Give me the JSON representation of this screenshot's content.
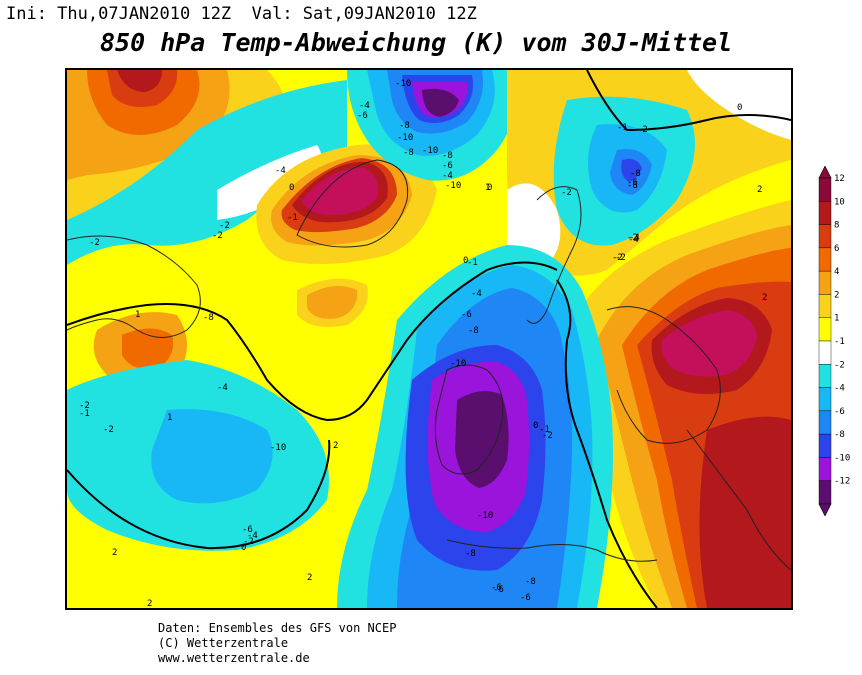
{
  "header": {
    "run_info": "Ini: Thu,07JAN2010 12Z  Val: Sat,09JAN2010 12Z",
    "title": "850 hPa Temp-Abweichung (K) vom 30J-Mittel"
  },
  "legend": {
    "labels": [
      "12",
      "10",
      "8",
      "6",
      "4",
      "2",
      "1",
      "-1",
      "-2",
      "-4",
      "-6",
      "-8",
      "-10",
      "-12"
    ],
    "colors": [
      "#8b0a3a",
      "#b3181d",
      "#d83c10",
      "#f06a00",
      "#f5a214",
      "#fad21c",
      "#ffff00",
      "#ffffff",
      "#22e1e1",
      "#17b8f5",
      "#1f86f5",
      "#2c44eb",
      "#9b14dc",
      "#5a0f6e"
    ]
  },
  "contour_labels": [
    "-10",
    "-6",
    "-4",
    "-8",
    "-10",
    "-8",
    "-10",
    "-8",
    "-6",
    "-4",
    "-10",
    "-6",
    "-4",
    "-2",
    "-2",
    "-4",
    "-6",
    "-8",
    "-10",
    "-10",
    "-8",
    "-6",
    "-8",
    "-6",
    "-4",
    "-2",
    "-2",
    "-4",
    "-6",
    "-8",
    "-2",
    "-2",
    "-2",
    "-4",
    "-2",
    "-1",
    "-2",
    "-1",
    "0",
    "0",
    "1",
    "1",
    "2",
    "2",
    "2",
    "2",
    "2",
    "2",
    "0",
    "0",
    "-1",
    "-2",
    "-4",
    "-2",
    "-1",
    "0",
    "-1",
    "-2",
    "0",
    "1",
    "-6",
    "-8",
    "-6"
  ],
  "credits": {
    "line1": "Daten: Ensembles des GFS von NCEP",
    "line2": "(C) Wetterzentrale",
    "line3": "www.wetterzentrale.de"
  }
}
